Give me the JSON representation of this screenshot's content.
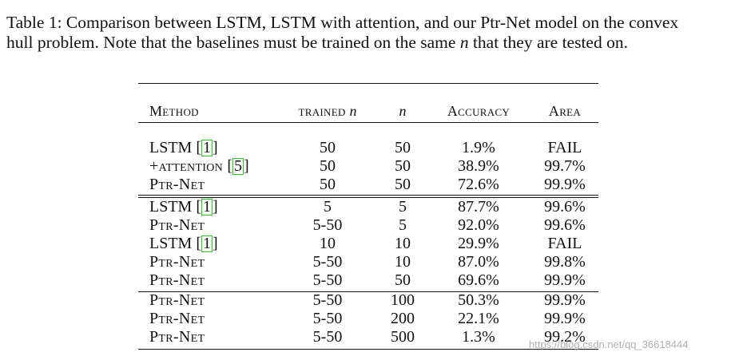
{
  "caption": {
    "line1": "Table 1: Comparison between LSTM, LSTM with attention, and our Ptr-Net model on the convex",
    "line2_pre": "hull problem. Note that the baselines must be trained on the same ",
    "line2_var": "n",
    "line2_post": " that they are tested on."
  },
  "table": {
    "headers": {
      "method": "Method",
      "trained_pre": "trained ",
      "trained_var": "n",
      "n": "n",
      "accuracy": "Accuracy",
      "area": "Area"
    },
    "rows": [
      {
        "method": "LSTM ",
        "cite": "1",
        "trained": "50",
        "n": "50",
        "accuracy": "1.9%",
        "area": "FAIL"
      },
      {
        "method": "+attention ",
        "cite": "5",
        "trained": "50",
        "n": "50",
        "accuracy": "38.9%",
        "area": "99.7%"
      },
      {
        "method": "Ptr-Net",
        "cite": "",
        "trained": "50",
        "n": "50",
        "accuracy": "72.6%",
        "area": "99.9%"
      },
      {
        "method": "LSTM ",
        "cite": "1",
        "trained": "5",
        "n": "5",
        "accuracy": "87.7%",
        "area": "99.6%"
      },
      {
        "method": "Ptr-Net",
        "cite": "",
        "trained": "5-50",
        "n": "5",
        "accuracy": "92.0%",
        "area": "99.6%"
      },
      {
        "method": "LSTM ",
        "cite": "1",
        "trained": "10",
        "n": "10",
        "accuracy": "29.9%",
        "area": "FAIL"
      },
      {
        "method": "Ptr-Net",
        "cite": "",
        "trained": "5-50",
        "n": "10",
        "accuracy": "87.0%",
        "area": "99.8%"
      },
      {
        "method": "Ptr-Net",
        "cite": "",
        "trained": "5-50",
        "n": "50",
        "accuracy": "69.6%",
        "area": "99.9%"
      },
      {
        "method": "Ptr-Net",
        "cite": "",
        "trained": "5-50",
        "n": "100",
        "accuracy": "50.3%",
        "area": "99.9%"
      },
      {
        "method": "Ptr-Net",
        "cite": "",
        "trained": "5-50",
        "n": "200",
        "accuracy": "22.1%",
        "area": "99.9%"
      },
      {
        "method": "Ptr-Net",
        "cite": "",
        "trained": "5-50",
        "n": "500",
        "accuracy": "1.3%",
        "area": "99.2%"
      }
    ]
  },
  "watermark": "https://blog.csdn.net/qq_36618444"
}
